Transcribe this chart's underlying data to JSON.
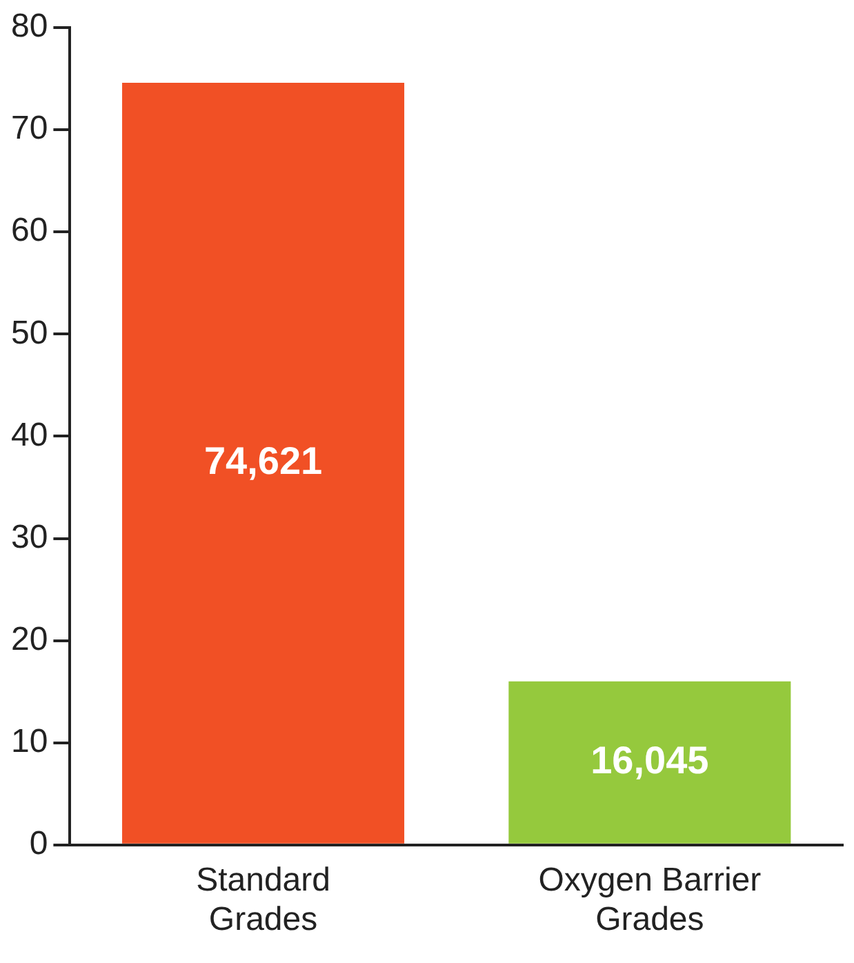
{
  "chart_data": {
    "type": "bar",
    "categories": [
      "Standard Grades",
      "Oxygen Barrier Grades"
    ],
    "values": [
      74.6,
      16.0
    ],
    "colors": [
      "#f15025",
      "#95c93d"
    ],
    "annotations": [
      "74,621",
      "16,045"
    ],
    "ylim": [
      0,
      80
    ],
    "yticks": [
      0,
      10,
      20,
      30,
      40,
      50,
      60,
      70,
      80
    ],
    "grid": false,
    "legend": false
  }
}
